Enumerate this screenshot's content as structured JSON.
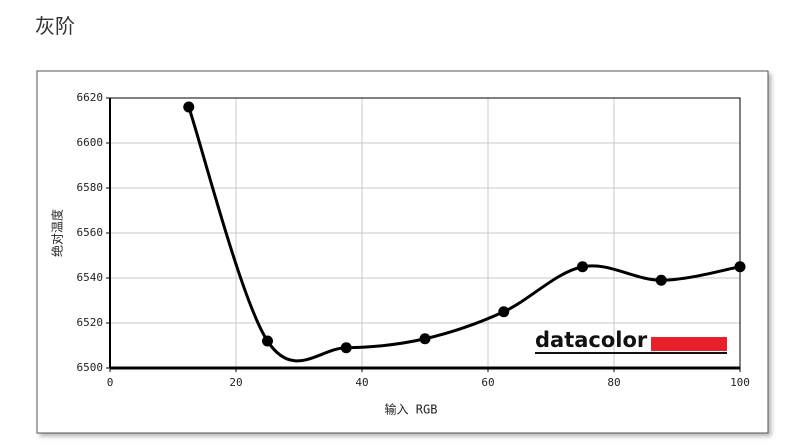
{
  "page_title": "灰阶",
  "chart_data": {
    "type": "line",
    "x_label": "输入 RGB",
    "y_label": "绝对温度",
    "logo": "datacolor",
    "x": [
      12.5,
      25,
      37.5,
      50,
      62.5,
      75,
      87.5,
      100
    ],
    "values": [
      6616,
      6512,
      6509,
      6513,
      6525,
      6545,
      6539,
      6545
    ],
    "color": "#000000",
    "smooth": true,
    "grid": true,
    "xlim": [
      0,
      100
    ],
    "xticks": [
      0,
      20,
      40,
      60,
      80,
      100
    ],
    "ylim": [
      6500,
      6620
    ],
    "yticks": [
      6500,
      6520,
      6540,
      6560,
      6580,
      6600,
      6620
    ]
  }
}
